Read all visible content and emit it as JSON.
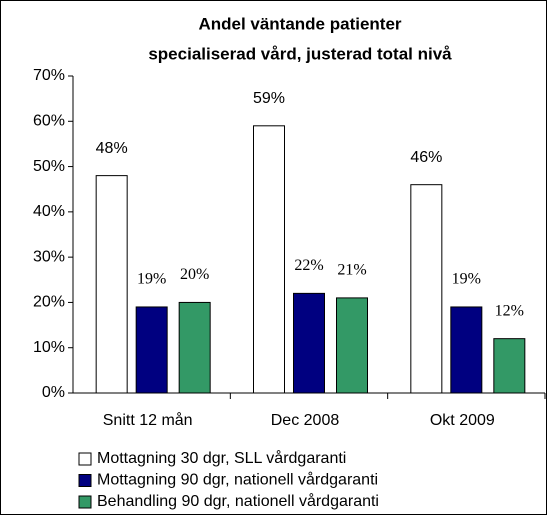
{
  "chart_data": {
    "type": "bar",
    "title": [
      "Andel väntande patienter",
      "specialiserad vård, justerad total nivå"
    ],
    "categories": [
      "Snitt 12 mån",
      "Dec 2008",
      "Okt 2009"
    ],
    "series": [
      {
        "name": "Mottagning 30 dgr, SLL vårdgaranti",
        "color": "#ffffff",
        "values": [
          48,
          59,
          46
        ],
        "value_labels": [
          "48%",
          "59%",
          "46%"
        ]
      },
      {
        "name": "Mottagning 90 dgr, nationell vårdgaranti",
        "color": "#000080",
        "values": [
          19,
          22,
          19
        ],
        "value_labels": [
          "19%",
          "22%",
          "19%"
        ]
      },
      {
        "name": "Behandling 90 dgr, nationell vårdgaranti",
        "color": "#339966",
        "values": [
          20,
          21,
          12
        ],
        "value_labels": [
          "20%",
          "21%",
          "12%"
        ]
      }
    ],
    "ylim": [
      0,
      70
    ],
    "yticks": [
      {
        "value": 0,
        "label": "0%"
      },
      {
        "value": 10,
        "label": "10%"
      },
      {
        "value": 20,
        "label": "20%"
      },
      {
        "value": 30,
        "label": "30%"
      },
      {
        "value": 40,
        "label": "40%"
      },
      {
        "value": 50,
        "label": "50%"
      },
      {
        "value": 60,
        "label": "60%"
      },
      {
        "value": 70,
        "label": "70%"
      }
    ]
  }
}
